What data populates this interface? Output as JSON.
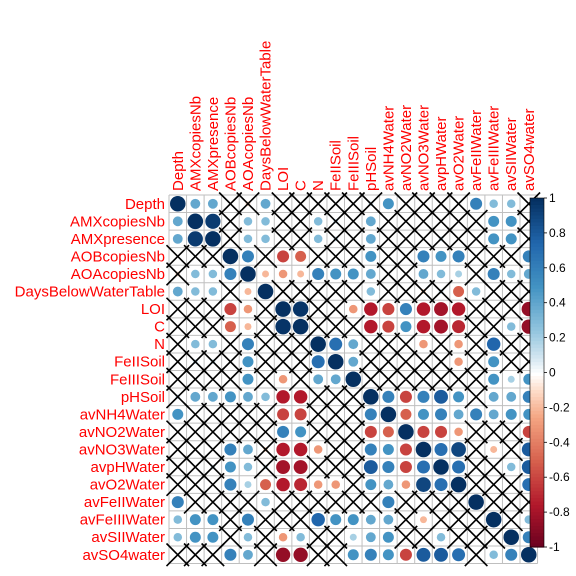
{
  "chart_data": {
    "type": "heatmap",
    "method": "circle",
    "insignificant_mark": "cross",
    "variables": [
      "Depth",
      "AMXcopiesNb",
      "AMXpresence",
      "AOBcopiesNb",
      "AOAcopiesNb",
      "DaysBelowWaterTable",
      "LOI",
      "C",
      "N",
      "FeIISoil",
      "FeIIISoil",
      "pHSoil",
      "avNH4Water",
      "avNO2Water",
      "avNO3Water",
      "avpHWater",
      "avO2Water",
      "avFeIIWater",
      "avFeIIIWater",
      "avSIIWater",
      "avSO4water"
    ],
    "matrix": [
      [
        1.0,
        0.4,
        0.4,
        0.0,
        -0.1,
        0.4,
        0.0,
        0.0,
        0.0,
        0.0,
        0.0,
        0.1,
        0.5,
        0.0,
        0.0,
        0.0,
        0.0,
        0.6,
        0.3,
        0.3,
        0.0
      ],
      [
        0.4,
        1.0,
        0.95,
        0.0,
        0.3,
        0.3,
        0.0,
        0.0,
        0.3,
        0.1,
        0.0,
        0.4,
        0.0,
        0.0,
        0.0,
        0.0,
        0.0,
        0.0,
        0.5,
        0.5,
        0.0
      ],
      [
        0.4,
        0.95,
        1.0,
        0.0,
        0.3,
        0.3,
        0.0,
        0.0,
        0.3,
        0.1,
        0.0,
        0.4,
        0.0,
        0.0,
        0.0,
        0.1,
        0.0,
        0.0,
        0.5,
        0.5,
        0.0
      ],
      [
        0.0,
        0.0,
        0.0,
        1.0,
        0.6,
        0.0,
        -0.6,
        -0.5,
        0.0,
        0.0,
        0.0,
        0.5,
        0.0,
        0.0,
        0.6,
        0.5,
        0.6,
        0.0,
        0.0,
        0.0,
        0.6
      ],
      [
        -0.1,
        0.3,
        0.3,
        0.6,
        1.0,
        -0.2,
        -0.3,
        -0.2,
        0.6,
        0.5,
        0.5,
        0.4,
        0.0,
        0.0,
        0.4,
        0.3,
        0.2,
        0.0,
        0.6,
        0.3,
        0.4
      ],
      [
        0.4,
        0.3,
        0.3,
        0.0,
        -0.2,
        1.0,
        0.0,
        0.0,
        0.0,
        0.0,
        0.0,
        0.3,
        0.0,
        0.0,
        -0.1,
        0.1,
        -0.5,
        0.3,
        0.0,
        0.0,
        0.0
      ],
      [
        0.0,
        0.0,
        0.0,
        -0.6,
        -0.3,
        0.0,
        1.0,
        0.98,
        0.0,
        0.0,
        -0.3,
        -0.75,
        -0.6,
        0.6,
        -0.75,
        -0.8,
        -0.75,
        0.0,
        0.0,
        0.0,
        -0.85
      ],
      [
        0.0,
        0.0,
        0.0,
        -0.5,
        -0.2,
        0.0,
        0.98,
        1.0,
        0.0,
        0.0,
        0.0,
        -0.75,
        -0.6,
        0.5,
        -0.75,
        -0.8,
        -0.7,
        0.0,
        0.0,
        0.3,
        -0.85
      ],
      [
        0.0,
        0.3,
        0.3,
        0.0,
        0.6,
        0.0,
        0.0,
        0.0,
        1.0,
        0.7,
        0.4,
        0.0,
        0.0,
        0.0,
        -0.3,
        0.0,
        -0.3,
        0.0,
        0.75,
        0.0,
        0.0
      ],
      [
        0.0,
        0.1,
        0.1,
        0.0,
        0.5,
        0.0,
        0.0,
        0.0,
        0.7,
        1.0,
        0.4,
        0.0,
        0.0,
        0.0,
        0.0,
        0.0,
        -0.3,
        0.0,
        0.5,
        0.0,
        0.0
      ],
      [
        0.0,
        0.0,
        0.0,
        0.0,
        0.5,
        0.0,
        -0.3,
        0.0,
        0.4,
        0.4,
        1.0,
        0.0,
        0.0,
        0.0,
        0.0,
        0.0,
        0.0,
        0.0,
        0.5,
        0.2,
        0.5
      ],
      [
        0.1,
        0.4,
        0.4,
        0.5,
        0.4,
        0.3,
        -0.75,
        -0.75,
        0.0,
        0.0,
        0.0,
        1.0,
        0.6,
        -0.6,
        0.6,
        0.8,
        0.5,
        0.0,
        0.4,
        0.4,
        0.6
      ],
      [
        0.5,
        0.0,
        0.0,
        0.0,
        0.0,
        0.0,
        -0.6,
        -0.6,
        0.0,
        0.0,
        0.0,
        0.6,
        1.0,
        -0.5,
        0.5,
        0.6,
        0.4,
        0.6,
        0.4,
        0.5,
        0.5
      ],
      [
        0.0,
        0.0,
        0.0,
        0.0,
        0.0,
        0.0,
        0.6,
        0.5,
        0.0,
        0.0,
        0.0,
        -0.6,
        -0.5,
        1.0,
        -0.6,
        -0.6,
        -0.3,
        0.0,
        0.0,
        0.0,
        -0.6
      ],
      [
        0.0,
        0.0,
        0.0,
        0.6,
        0.4,
        -0.1,
        -0.75,
        -0.75,
        -0.3,
        0.0,
        0.0,
        0.6,
        0.5,
        -0.6,
        1.0,
        0.7,
        0.9,
        0.0,
        -0.2,
        0.0,
        0.8
      ],
      [
        0.0,
        0.0,
        0.1,
        0.5,
        0.3,
        0.1,
        -0.8,
        -0.8,
        0.0,
        0.0,
        0.0,
        0.8,
        0.6,
        -0.6,
        0.7,
        1.0,
        0.7,
        0.0,
        0.0,
        0.3,
        0.8
      ],
      [
        0.0,
        0.0,
        0.0,
        0.6,
        0.2,
        -0.5,
        -0.75,
        -0.7,
        -0.3,
        -0.3,
        0.0,
        0.5,
        0.4,
        -0.3,
        0.9,
        0.7,
        1.0,
        0.0,
        0.0,
        0.0,
        0.7
      ],
      [
        0.6,
        0.0,
        0.0,
        0.0,
        0.0,
        0.3,
        0.0,
        0.0,
        0.0,
        0.0,
        0.0,
        0.0,
        0.6,
        0.0,
        0.0,
        0.0,
        0.0,
        1.0,
        0.0,
        0.0,
        0.0
      ],
      [
        0.3,
        0.5,
        0.5,
        0.0,
        0.6,
        0.0,
        0.0,
        0.0,
        0.75,
        0.5,
        0.5,
        0.4,
        0.4,
        0.0,
        -0.2,
        0.0,
        0.0,
        0.0,
        1.0,
        0.0,
        0.3
      ],
      [
        0.3,
        0.5,
        0.5,
        0.0,
        0.3,
        0.0,
        -0.3,
        0.3,
        0.0,
        0.0,
        0.2,
        0.4,
        0.5,
        0.0,
        0.0,
        0.3,
        0.0,
        0.0,
        0.0,
        1.0,
        0.6
      ],
      [
        0.0,
        0.0,
        0.0,
        0.6,
        0.4,
        0.0,
        -0.85,
        -0.85,
        0.0,
        0.0,
        0.5,
        0.6,
        0.5,
        -0.6,
        0.8,
        0.8,
        0.7,
        0.0,
        0.3,
        0.6,
        1.0
      ]
    ],
    "significance_threshold_abs": 0.2,
    "legend": {
      "placement": "right",
      "ticks": [
        "1",
        "0.8",
        "0.6",
        "0.4",
        "0.2",
        "0",
        "-0.2",
        "-0.4",
        "-0.6",
        "-0.8",
        "-1"
      ],
      "range": [
        -1,
        1
      ]
    },
    "colors": {
      "label_text": "#ff0000",
      "grid": "#bfbfbf",
      "cross": "#000000",
      "scale_neg": "#67001f",
      "scale_mid": "#ffffff",
      "scale_pos": "#053061"
    },
    "title": "",
    "xlabel": "",
    "ylabel": ""
  }
}
